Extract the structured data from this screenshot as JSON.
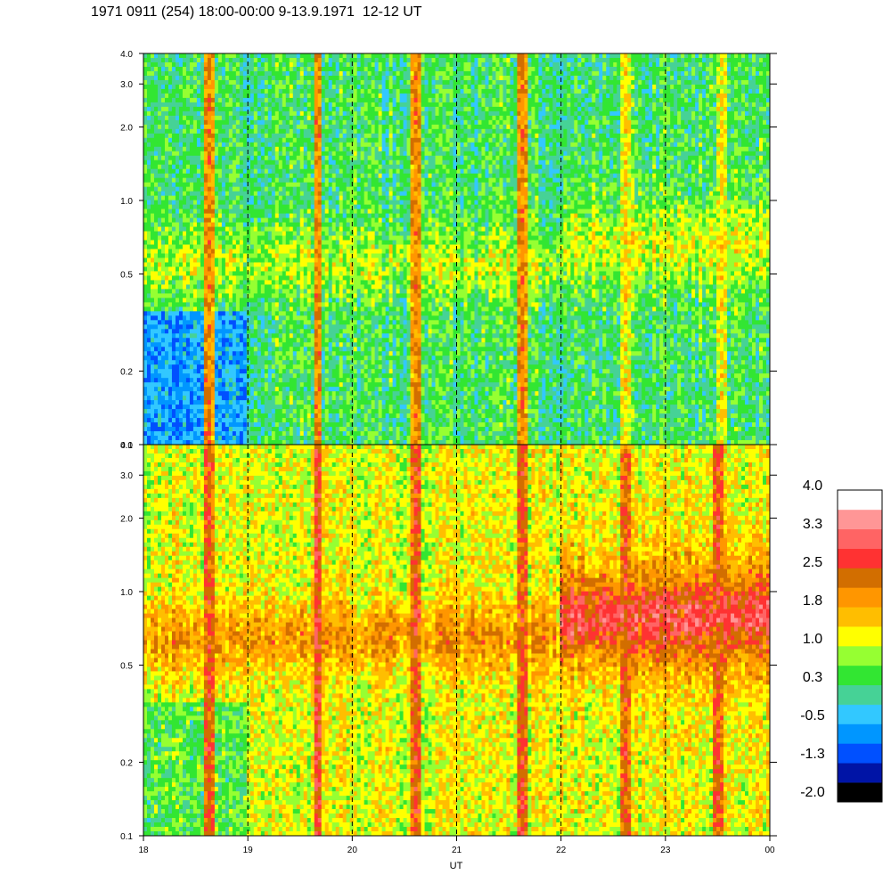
{
  "title": "1971 0911 (254) 18:00-00:00 9-13.9.1971  12-12 UT",
  "chart_data": {
    "type": "heatmap",
    "title": "1971 0911 (254) 18:00-00:00 9-13.9.1971  12-12 UT",
    "xlabel": "UT",
    "x_ticks": [
      "18",
      "19",
      "20",
      "21",
      "22",
      "23",
      "00"
    ],
    "x_range": [
      18,
      24
    ],
    "y_scale": "log",
    "panels": [
      {
        "name": "upper",
        "y_ticks": [
          "0.1",
          "0.2",
          "0.5",
          "1.0",
          "2.0",
          "3.0",
          "4.0"
        ],
        "y_range": [
          0.1,
          4.0
        ],
        "base_level": 0.3,
        "band": {
          "center": 0.55,
          "level": 0.9,
          "shift_after_22": 0.2
        },
        "low_region_level": -0.6,
        "spikes": [
          {
            "ut": 18.62,
            "level": 2.2
          },
          {
            "ut": 19.67,
            "level": 2.2
          },
          {
            "ut": 20.62,
            "level": 2.2
          },
          {
            "ut": 21.62,
            "level": 2.2
          },
          {
            "ut": 22.62,
            "level": 1.4
          },
          {
            "ut": 23.55,
            "level": 1.4
          }
        ]
      },
      {
        "name": "lower",
        "y_ticks": [
          "0.1",
          "0.2",
          "0.5",
          "1.0",
          "2.0",
          "3.0",
          "4.0"
        ],
        "y_range": [
          0.1,
          4.0
        ],
        "base_level": 1.1,
        "band": {
          "center": 0.65,
          "level": 1.9,
          "shift_after_22": 0.9
        },
        "low_region_level": 0.5,
        "spikes": [
          {
            "ut": 18.62,
            "level": 2.6
          },
          {
            "ut": 19.67,
            "level": 2.8
          },
          {
            "ut": 20.62,
            "level": 2.6
          },
          {
            "ut": 21.62,
            "level": 2.6
          },
          {
            "ut": 22.62,
            "level": 2.5
          },
          {
            "ut": 23.5,
            "level": 2.6
          }
        ]
      }
    ],
    "colorbar": {
      "labels": [
        "4.0",
        "3.3",
        "2.5",
        "1.8",
        "1.0",
        "0.3",
        "-0.5",
        "-1.3",
        "-2.0"
      ],
      "min": -2.0,
      "max": 4.0,
      "colors": [
        "#000000",
        "#0014a6",
        "#0050ff",
        "#0096ff",
        "#32c8ff",
        "#46d296",
        "#32e632",
        "#96ff32",
        "#ffff00",
        "#ffbe00",
        "#ff9600",
        "#d26e00",
        "#ff3232",
        "#ff6464",
        "#ff9696",
        "#ffffff"
      ]
    }
  }
}
